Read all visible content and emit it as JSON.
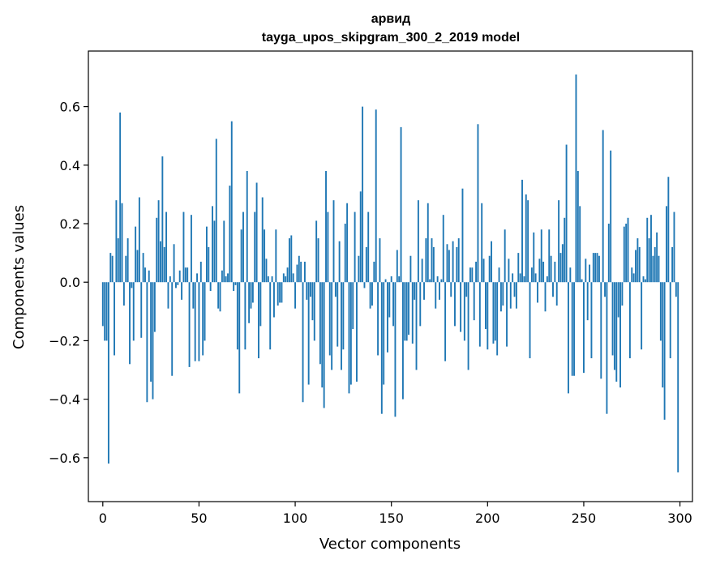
{
  "chart_data": {
    "type": "bar",
    "title_line1": "арвид",
    "title_line2": "tayga_upos_skipgram_300_2_2019 model",
    "xlabel": "Vector components",
    "ylabel": "Components values",
    "xlim": [
      -7.5,
      306.5
    ],
    "ylim": [
      -0.75,
      0.79
    ],
    "xticks": [
      0,
      50,
      100,
      150,
      200,
      250,
      300
    ],
    "yticks": [
      -0.6,
      -0.4,
      -0.2,
      0.0,
      0.2,
      0.4,
      0.6
    ],
    "ytick_labels": [
      "−0.6",
      "−0.4",
      "−0.2",
      "0.0",
      "0.2",
      "0.4",
      "0.6"
    ],
    "bar_color": "#1f77b4",
    "grid": false,
    "values": [
      -0.15,
      -0.2,
      -0.2,
      -0.62,
      0.1,
      0.09,
      -0.25,
      0.28,
      0.15,
      0.58,
      0.27,
      -0.08,
      0.09,
      0.15,
      -0.28,
      -0.02,
      -0.2,
      0.19,
      0.11,
      0.29,
      -0.19,
      0.1,
      0.05,
      -0.41,
      0.04,
      -0.34,
      -0.4,
      -0.17,
      0.22,
      0.28,
      0.14,
      0.43,
      0.12,
      0.24,
      -0.09,
      0.02,
      -0.32,
      0.13,
      -0.02,
      -0.01,
      0.04,
      -0.06,
      0.24,
      0.05,
      0.05,
      -0.29,
      0.23,
      -0.09,
      -0.27,
      0.03,
      -0.27,
      0.07,
      -0.25,
      -0.2,
      0.19,
      0.12,
      -0.03,
      0.26,
      0.21,
      0.49,
      -0.09,
      -0.1,
      0.04,
      0.21,
      0.02,
      0.03,
      0.33,
      0.55,
      -0.03,
      -0.01,
      -0.23,
      -0.38,
      0.18,
      0.24,
      -0.23,
      0.38,
      -0.14,
      -0.09,
      -0.07,
      0.24,
      0.34,
      -0.26,
      -0.15,
      0.29,
      0.18,
      0.08,
      0.02,
      -0.23,
      0.02,
      -0.12,
      0.18,
      -0.08,
      -0.07,
      -0.07,
      0.03,
      0.02,
      0.05,
      0.15,
      0.16,
      0.03,
      -0.09,
      0.06,
      0.09,
      0.07,
      -0.41,
      0.07,
      -0.06,
      -0.35,
      -0.05,
      -0.13,
      -0.2,
      0.21,
      0.15,
      -0.28,
      -0.36,
      -0.43,
      0.38,
      0.24,
      -0.25,
      -0.3,
      0.28,
      -0.05,
      -0.22,
      0.14,
      -0.3,
      -0.23,
      0.2,
      0.27,
      -0.38,
      -0.35,
      -0.16,
      0.24,
      -0.34,
      0.09,
      0.31,
      0.6,
      -0.02,
      0.12,
      0.24,
      -0.09,
      -0.08,
      0.07,
      0.59,
      -0.25,
      0.15,
      -0.45,
      -0.35,
      0.01,
      -0.24,
      -0.12,
      0.02,
      -0.15,
      -0.46,
      0.11,
      0.02,
      0.53,
      -0.4,
      -0.2,
      -0.2,
      -0.18,
      0.09,
      -0.21,
      -0.06,
      -0.3,
      0.28,
      -0.15,
      0.08,
      -0.06,
      0.15,
      0.27,
      0.01,
      0.15,
      0.12,
      -0.09,
      0.02,
      -0.06,
      0.01,
      0.23,
      -0.27,
      0.13,
      0.11,
      -0.05,
      0.14,
      -0.15,
      0.12,
      0.15,
      -0.17,
      0.32,
      -0.2,
      -0.05,
      -0.3,
      0.05,
      0.05,
      -0.13,
      0.07,
      0.54,
      -0.22,
      0.27,
      0.08,
      -0.16,
      -0.23,
      0.09,
      0.14,
      -0.21,
      -0.2,
      -0.25,
      0.05,
      -0.1,
      -0.08,
      0.18,
      -0.22,
      0.08,
      -0.09,
      0.03,
      -0.05,
      -0.09,
      0.1,
      0.03,
      0.35,
      0.02,
      0.3,
      0.28,
      -0.26,
      0.05,
      0.17,
      0.03,
      -0.07,
      0.08,
      0.18,
      0.07,
      -0.1,
      0.02,
      0.18,
      0.09,
      -0.05,
      0.07,
      -0.08,
      0.28,
      0.1,
      0.13,
      0.22,
      0.47,
      -0.38,
      0.05,
      -0.32,
      -0.32,
      0.71,
      0.38,
      0.26,
      0.01,
      -0.31,
      0.08,
      -0.13,
      0.06,
      -0.26,
      0.1,
      0.1,
      0.1,
      0.09,
      -0.33,
      0.52,
      -0.05,
      -0.45,
      0.2,
      0.45,
      -0.25,
      -0.3,
      -0.34,
      -0.12,
      -0.36,
      -0.08,
      0.19,
      0.2,
      0.22,
      -0.26,
      0.05,
      0.03,
      0.11,
      0.15,
      0.12,
      -0.23,
      0.02,
      0.01,
      0.22,
      0.15,
      0.23,
      0.09,
      0.12,
      0.17,
      0.09,
      -0.2,
      -0.36,
      -0.47,
      0.26,
      0.36,
      -0.26,
      0.12,
      0.24,
      -0.05,
      -0.65
    ]
  }
}
